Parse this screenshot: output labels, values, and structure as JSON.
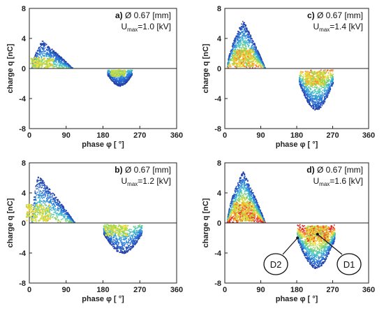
{
  "chart_data": [
    {
      "id": "a)",
      "type": "scatter",
      "diameter_label": "Ø 0.67 [mm]",
      "umax_prefix": "U",
      "umax_sub": "max",
      "umax_value": "=1.0 [kV]",
      "xlabel": "phase φ [ °]",
      "ylabel": "charge q [nC]",
      "xlim": [
        0,
        360
      ],
      "ylim": [
        -8,
        8
      ],
      "xticks": [
        "0",
        "90",
        "180",
        "270",
        "360"
      ],
      "yticks": [
        "8",
        "4",
        "0",
        "-4",
        "-8"
      ],
      "clusters": [
        {
          "shape": "hump",
          "x0": 5,
          "x1": 105,
          "peak_x": 30,
          "peak_y": 3.8,
          "sign": 1,
          "intensity": 0.45
        },
        {
          "shape": "dip",
          "x0": 190,
          "x1": 250,
          "peak_x": 215,
          "peak_y": -2.3,
          "sign": -1,
          "intensity": 0.35
        }
      ]
    },
    {
      "id": "b)",
      "type": "scatter",
      "diameter_label": "Ø 0.67 [mm]",
      "umax_prefix": "U",
      "umax_sub": "max",
      "umax_value": "=1.2 [kV]",
      "xlabel": "phase φ [ °]",
      "ylabel": "charge q [nC]",
      "xlim": [
        0,
        360
      ],
      "ylim": [
        -8,
        8
      ],
      "xticks": [
        "0",
        "90",
        "180",
        "270",
        "360"
      ],
      "yticks": [
        "8",
        "4",
        "0",
        "-4",
        "-8"
      ],
      "clusters": [
        {
          "shape": "hump",
          "x0": 5,
          "x1": 110,
          "peak_x": 20,
          "peak_y": 6.5,
          "sign": 1,
          "intensity": 0.5
        },
        {
          "shape": "dip",
          "x0": 180,
          "x1": 275,
          "peak_x": 210,
          "peak_y": -4.0,
          "sign": -1,
          "intensity": 0.45
        }
      ]
    },
    {
      "id": "c)",
      "type": "scatter",
      "diameter_label": "Ø 0.67 [mm]",
      "umax_prefix": "U",
      "umax_sub": "max",
      "umax_value": "=1.4 [kV]",
      "xlabel": "phase φ [ °]",
      "ylabel": "charge q [nC]",
      "xlim": [
        0,
        360
      ],
      "ylim": [
        -8,
        8
      ],
      "xticks": [
        "0",
        "90",
        "180",
        "270",
        "360"
      ],
      "yticks": [
        "8",
        "4",
        "0",
        "-4",
        "-8"
      ],
      "clusters": [
        {
          "shape": "hump",
          "x0": 5,
          "x1": 100,
          "peak_x": 45,
          "peak_y": 6.5,
          "sign": 1,
          "intensity": 0.75
        },
        {
          "shape": "dip",
          "x0": 185,
          "x1": 270,
          "peak_x": 225,
          "peak_y": -5.5,
          "sign": -1,
          "intensity": 0.7
        }
      ]
    },
    {
      "id": "d)",
      "type": "scatter",
      "diameter_label": "Ø 0.67 [mm]",
      "umax_prefix": "U",
      "umax_sub": "max",
      "umax_value": "=1.6 [kV]",
      "xlabel": "phase φ [ °]",
      "ylabel": "charge q [nC]",
      "xlim": [
        0,
        360
      ],
      "ylim": [
        -8,
        8
      ],
      "xticks": [
        "0",
        "90",
        "180",
        "270",
        "360"
      ],
      "yticks": [
        "8",
        "4",
        "0",
        "-4",
        "-8"
      ],
      "clusters": [
        {
          "shape": "hump",
          "x0": 5,
          "x1": 100,
          "peak_x": 45,
          "peak_y": 7.0,
          "sign": 1,
          "intensity": 0.95
        },
        {
          "shape": "dip",
          "x0": 180,
          "x1": 275,
          "peak_x": 230,
          "peak_y": -6.0,
          "sign": -1,
          "intensity": 0.95
        }
      ],
      "callouts": [
        {
          "label": "D2",
          "target_x": 182,
          "target_y": -2.0
        },
        {
          "label": "D1",
          "target_x": 232,
          "target_y": -1.5
        }
      ]
    }
  ]
}
